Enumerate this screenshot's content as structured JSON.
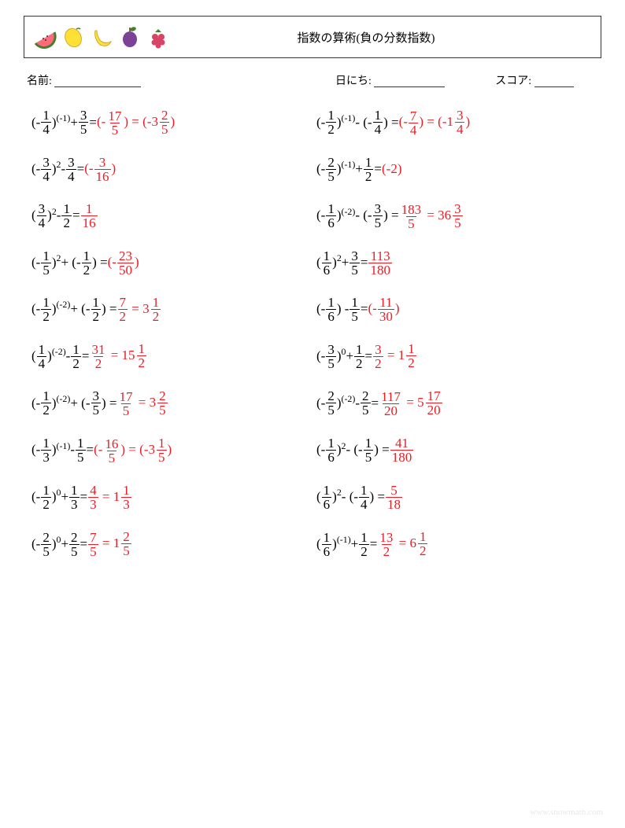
{
  "colors": {
    "answer": "#ec1c24",
    "text": "#000000",
    "border": "#333333",
    "footer": "#e8e8e8"
  },
  "title": "指数の算術(負の分数指数)",
  "labels": {
    "name": "名前:",
    "date": "日にち:",
    "score": "スコア:"
  },
  "footer": "www.snowmath.com",
  "fruits": [
    "watermelon",
    "lemon",
    "banana",
    "plum",
    "raspberry"
  ],
  "problems": [
    [
      {
        "base": {
          "sign": "-",
          "n": "1",
          "d": "4"
        },
        "exp": "(-1)",
        "op": "+",
        "term": {
          "n": "3",
          "d": "5"
        },
        "ans": [
          {
            "paren": true,
            "sign": "-",
            "n": "17",
            "d": "5"
          },
          {
            "paren": true,
            "sign": "-",
            "whole": "3",
            "n": "2",
            "d": "5"
          }
        ]
      },
      {
        "base": {
          "sign": "-",
          "n": "1",
          "d": "2"
        },
        "exp": "(-1)",
        "op": "-",
        "term": {
          "paren": true,
          "sign": "-",
          "n": "1",
          "d": "4"
        },
        "ans": [
          {
            "paren": true,
            "sign": "-",
            "n": "7",
            "d": "4"
          },
          {
            "paren": true,
            "sign": "-",
            "whole": "1",
            "n": "3",
            "d": "4"
          }
        ]
      }
    ],
    [
      {
        "base": {
          "sign": "-",
          "n": "3",
          "d": "4"
        },
        "exp": "2",
        "op": "-",
        "term": {
          "n": "3",
          "d": "4"
        },
        "ans": [
          {
            "paren": true,
            "sign": "-",
            "n": "3",
            "d": "16"
          }
        ]
      },
      {
        "base": {
          "sign": "-",
          "n": "2",
          "d": "5"
        },
        "exp": "(-1)",
        "op": "+",
        "term": {
          "n": "1",
          "d": "2"
        },
        "ans": [
          {
            "paren": true,
            "text": "-2"
          }
        ]
      }
    ],
    [
      {
        "base": {
          "n": "3",
          "d": "4"
        },
        "exp": "2",
        "op": "-",
        "term": {
          "n": "1",
          "d": "2"
        },
        "ans": [
          {
            "n": "1",
            "d": "16"
          }
        ]
      },
      {
        "base": {
          "sign": "-",
          "n": "1",
          "d": "6"
        },
        "exp": "(-2)",
        "op": "-",
        "term": {
          "paren": true,
          "sign": "-",
          "n": "3",
          "d": "5"
        },
        "ans": [
          {
            "n": "183",
            "d": "5"
          },
          {
            "whole": "36",
            "n": "3",
            "d": "5"
          }
        ]
      }
    ],
    [
      {
        "base": {
          "sign": "-",
          "n": "1",
          "d": "5"
        },
        "exp": "2",
        "op": "+",
        "term": {
          "paren": true,
          "sign": "-",
          "n": "1",
          "d": "2"
        },
        "ans": [
          {
            "paren": true,
            "sign": "-",
            "n": "23",
            "d": "50"
          }
        ]
      },
      {
        "base": {
          "n": "1",
          "d": "6"
        },
        "exp": "2",
        "op": "+",
        "term": {
          "n": "3",
          "d": "5"
        },
        "ans": [
          {
            "n": "113",
            "d": "180"
          }
        ]
      }
    ],
    [
      {
        "base": {
          "sign": "-",
          "n": "1",
          "d": "2"
        },
        "exp": "(-2)",
        "op": "+",
        "term": {
          "paren": true,
          "sign": "-",
          "n": "1",
          "d": "2"
        },
        "ans": [
          {
            "n": "7",
            "d": "2"
          },
          {
            "whole": "3",
            "n": "1",
            "d": "2"
          }
        ]
      },
      {
        "base": {
          "sign": "-",
          "n": "1",
          "d": "6"
        },
        "noexp": true,
        "op": "-",
        "term": {
          "n": "1",
          "d": "5"
        },
        "ans": [
          {
            "paren": true,
            "sign": "-",
            "n": "11",
            "d": "30"
          }
        ]
      }
    ],
    [
      {
        "base": {
          "n": "1",
          "d": "4"
        },
        "exp": "(-2)",
        "op": "-",
        "term": {
          "n": "1",
          "d": "2"
        },
        "ans": [
          {
            "n": "31",
            "d": "2"
          },
          {
            "whole": "15",
            "n": "1",
            "d": "2"
          }
        ]
      },
      {
        "base": {
          "sign": "-",
          "n": "3",
          "d": "5"
        },
        "exp": "0",
        "op": "+",
        "term": {
          "n": "1",
          "d": "2"
        },
        "ans": [
          {
            "n": "3",
            "d": "2"
          },
          {
            "whole": "1",
            "n": "1",
            "d": "2"
          }
        ]
      }
    ],
    [
      {
        "base": {
          "sign": "-",
          "n": "1",
          "d": "2"
        },
        "exp": "(-2)",
        "op": "+",
        "term": {
          "paren": true,
          "sign": "-",
          "n": "3",
          "d": "5"
        },
        "ans": [
          {
            "n": "17",
            "d": "5"
          },
          {
            "whole": "3",
            "n": "2",
            "d": "5"
          }
        ]
      },
      {
        "base": {
          "sign": "-",
          "n": "2",
          "d": "5"
        },
        "exp": "(-2)",
        "op": "-",
        "term": {
          "n": "2",
          "d": "5"
        },
        "ans": [
          {
            "n": "117",
            "d": "20"
          },
          {
            "whole": "5",
            "n": "17",
            "d": "20"
          }
        ]
      }
    ],
    [
      {
        "base": {
          "sign": "-",
          "n": "1",
          "d": "3"
        },
        "exp": "(-1)",
        "op": "-",
        "term": {
          "n": "1",
          "d": "5"
        },
        "ans": [
          {
            "paren": true,
            "sign": "-",
            "n": "16",
            "d": "5"
          },
          {
            "paren": true,
            "sign": "-",
            "whole": "3",
            "n": "1",
            "d": "5"
          }
        ]
      },
      {
        "base": {
          "sign": "-",
          "n": "1",
          "d": "6"
        },
        "exp": "2",
        "op": "-",
        "term": {
          "paren": true,
          "sign": "-",
          "n": "1",
          "d": "5"
        },
        "ans": [
          {
            "n": "41",
            "d": "180"
          }
        ]
      }
    ],
    [
      {
        "base": {
          "sign": "-",
          "n": "1",
          "d": "2"
        },
        "exp": "0",
        "op": "+",
        "term": {
          "n": "1",
          "d": "3"
        },
        "ans": [
          {
            "n": "4",
            "d": "3"
          },
          {
            "whole": "1",
            "n": "1",
            "d": "3"
          }
        ]
      },
      {
        "base": {
          "n": "1",
          "d": "6"
        },
        "exp": "2",
        "op": "-",
        "term": {
          "paren": true,
          "sign": "-",
          "n": "1",
          "d": "4"
        },
        "ans": [
          {
            "n": "5",
            "d": "18"
          }
        ]
      }
    ],
    [
      {
        "base": {
          "sign": "-",
          "n": "2",
          "d": "5"
        },
        "exp": "0",
        "op": "+",
        "term": {
          "n": "2",
          "d": "5"
        },
        "ans": [
          {
            "n": "7",
            "d": "5"
          },
          {
            "whole": "1",
            "n": "2",
            "d": "5"
          }
        ]
      },
      {
        "base": {
          "n": "1",
          "d": "6"
        },
        "exp": "(-1)",
        "op": "+",
        "term": {
          "n": "1",
          "d": "2"
        },
        "ans": [
          {
            "n": "13",
            "d": "2"
          },
          {
            "whole": "6",
            "n": "1",
            "d": "2"
          }
        ]
      }
    ]
  ]
}
